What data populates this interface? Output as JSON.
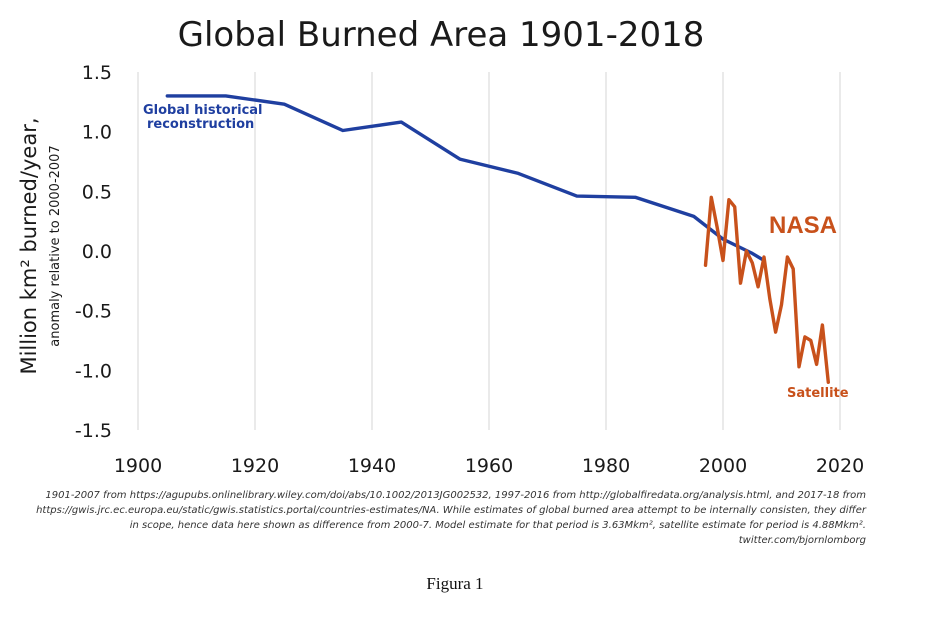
{
  "chart_data": {
    "type": "line",
    "title": "Global Burned Area 1901-2018",
    "ylabel": "Million km² burned/year,",
    "ylabel_sub": "anomaly relative to 2000-2007",
    "xlabel": "",
    "xlim": [
      1900,
      2020
    ],
    "ylim": [
      -1.5,
      1.5
    ],
    "x_ticks": [
      1900,
      1920,
      1940,
      1960,
      1980,
      2000,
      2020
    ],
    "y_ticks": [
      1.5,
      1.0,
      0.5,
      0.0,
      -0.5,
      -1.0,
      -1.5
    ],
    "x_tick_labels": [
      "1900",
      "1920",
      "1940",
      "1960",
      "1980",
      "2000",
      "2020"
    ],
    "y_tick_labels": [
      "1.5",
      "1.0",
      "0.5",
      "0.0",
      "-0.5",
      "-1.0",
      "-1.5"
    ],
    "grid": "vertical",
    "series": [
      {
        "name": "Global historical reconstruction",
        "label_lines": [
          "Global historical",
          "reconstruction"
        ],
        "color": "#1f3fa0",
        "x": [
          1905,
          1915,
          1925,
          1935,
          1945,
          1955,
          1965,
          1975,
          1985,
          1995,
          2000,
          2005,
          2007
        ],
        "y": [
          1.3,
          1.3,
          1.23,
          1.01,
          1.08,
          0.77,
          0.65,
          0.46,
          0.45,
          0.29,
          0.1,
          -0.02,
          -0.08
        ]
      },
      {
        "name": "NASA",
        "color": "#c8511b",
        "x": [
          1997,
          1998,
          1999,
          2000,
          2001,
          2002,
          2003,
          2004,
          2005,
          2006,
          2007,
          2008,
          2009,
          2010,
          2011,
          2012,
          2013,
          2014,
          2015,
          2016,
          2017,
          2018
        ],
        "y": [
          -0.12,
          0.45,
          0.2,
          -0.08,
          0.43,
          0.37,
          -0.27,
          0.0,
          -0.1,
          -0.3,
          -0.05,
          -0.4,
          -0.68,
          -0.45,
          -0.05,
          -0.15,
          -0.97,
          -0.72,
          -0.75,
          -0.95,
          -0.62,
          -1.1
        ]
      }
    ],
    "annotations": {
      "satellite": "Satellite"
    }
  },
  "source_note": "1901-2007 from https://agupubs.onlinelibrary.wiley.com/doi/abs/10.1002/2013JG002532, 1997-2016 from http://globalfiredata.org/analysis.html, and 2017-18 from https://gwis.jrc.ec.europa.eu/static/gwis.statistics.portal/countries-estimates/NA. While estimates of global burned area attempt to be internally consisten, they differ in scope, hence data here shown as difference from 2000-7. Model estimate for that period is 3.63Mkm², satellite estimate for period is 4.88Mkm². twitter.com/bjornlomborg",
  "caption": "Figura 1"
}
